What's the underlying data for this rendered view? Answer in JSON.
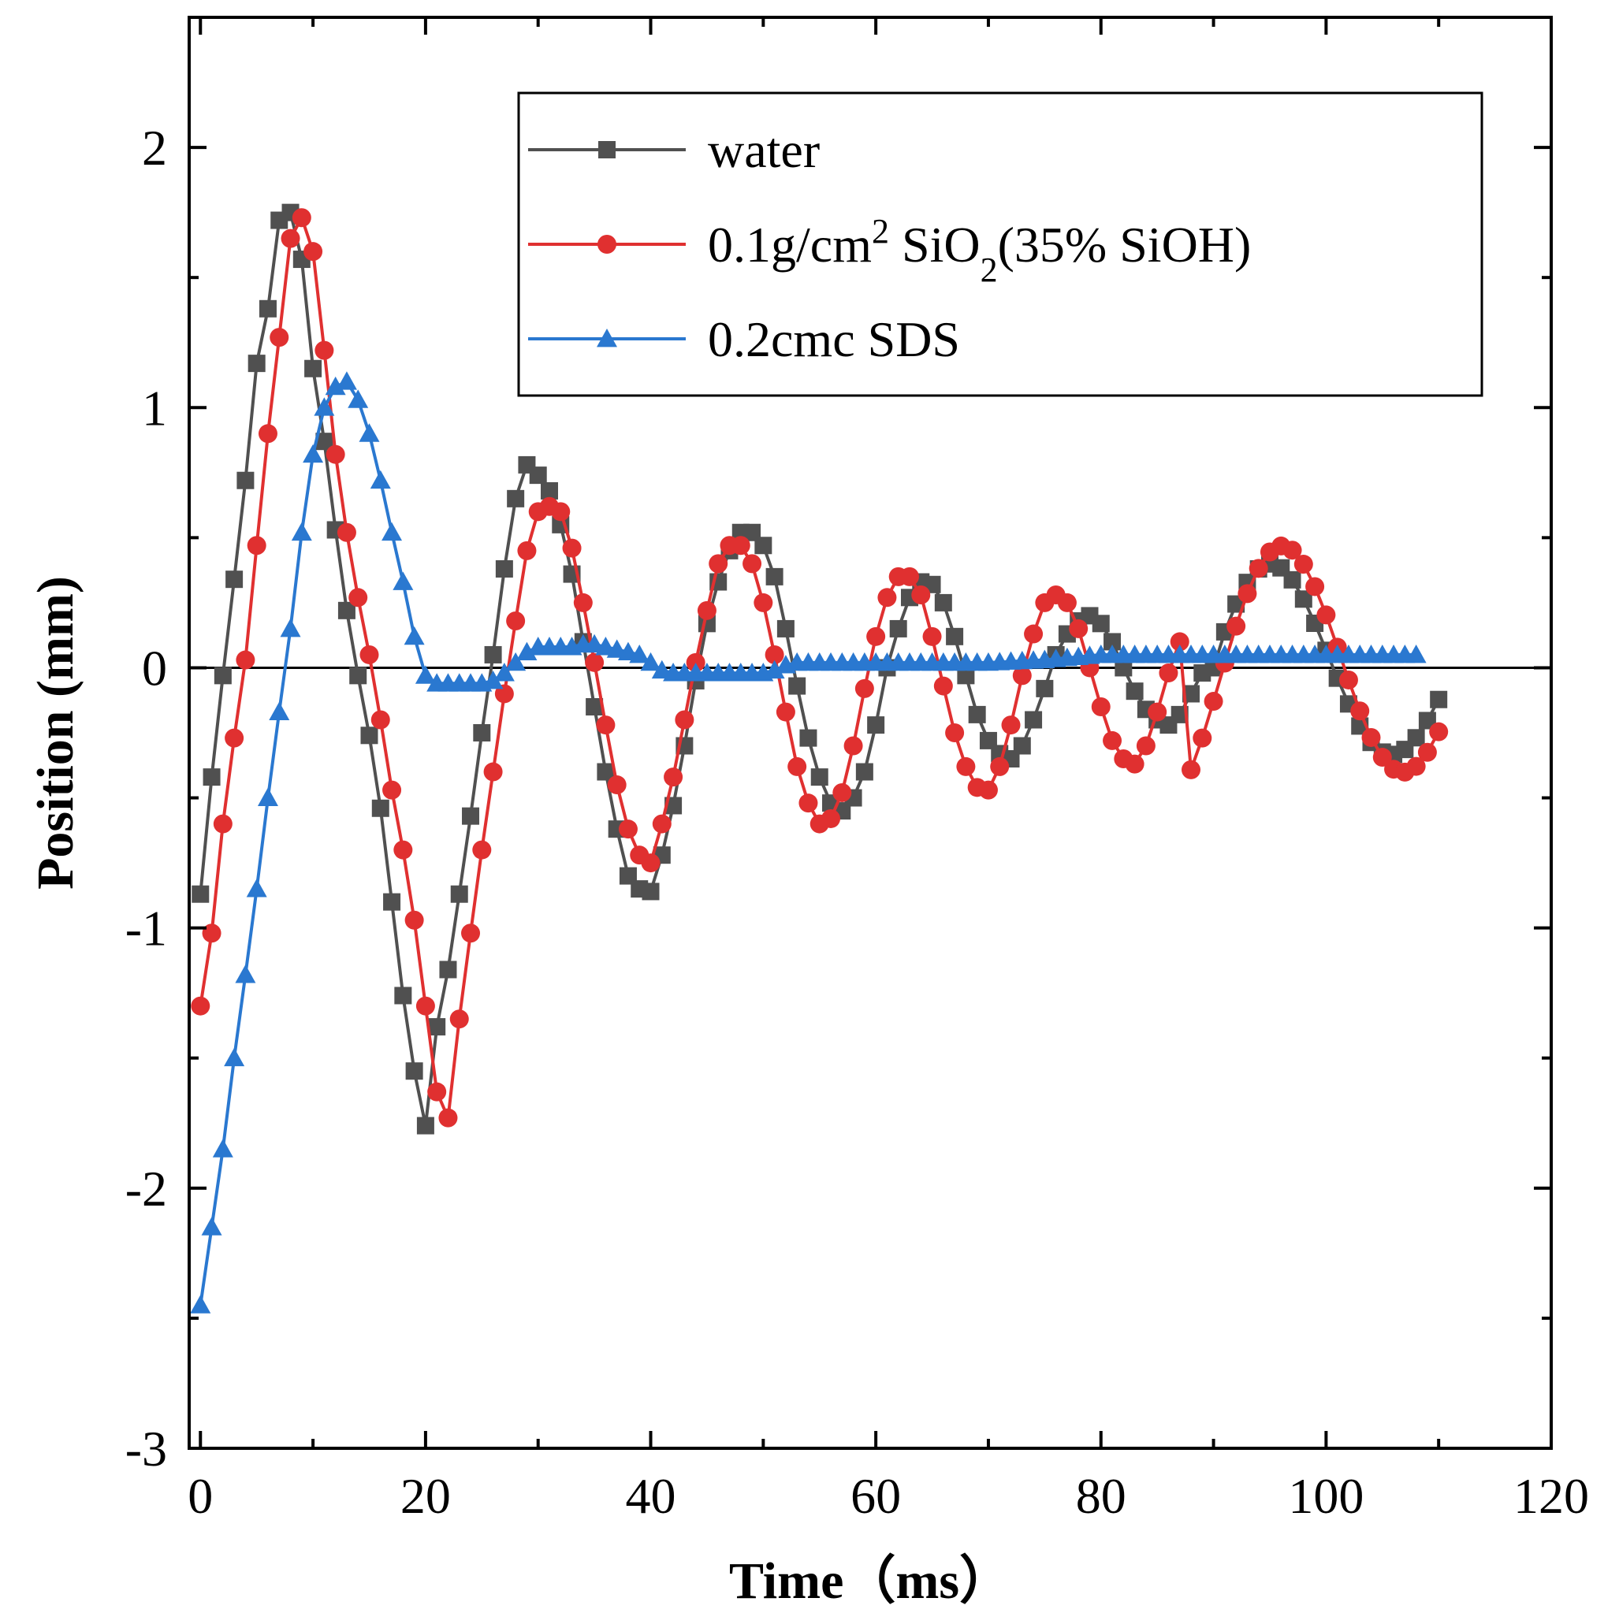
{
  "chart_data": {
    "type": "line",
    "title": "",
    "xlabel": "Time（ms）",
    "ylabel": "Position (mm)",
    "xlim": [
      -1,
      120
    ],
    "ylim": [
      -3,
      2.5
    ],
    "xticks": [
      0,
      20,
      40,
      60,
      80,
      100,
      120
    ],
    "yticks": [
      -3,
      -2,
      -1,
      0,
      1,
      2
    ],
    "xtick_labels": [
      "0",
      "20",
      "40",
      "60",
      "80",
      "100",
      "120"
    ],
    "ytick_labels": [
      "-3",
      "-2",
      "-1",
      "0",
      "1",
      "2"
    ],
    "zero_line": true,
    "legend": {
      "position": "top-right",
      "entries": [
        {
          "label": "water",
          "sub": "",
          "sup": "",
          "tail": ""
        },
        {
          "label": "0.1g/cm",
          "sup": "2",
          "mid": " SiO",
          "sub": "2",
          "tail": "(35% SiOH)"
        },
        {
          "label": "0.2cmc SDS",
          "sub": "",
          "sup": "",
          "tail": ""
        }
      ]
    },
    "series": [
      {
        "name": "water",
        "color": "#505050",
        "marker": "square",
        "model": {
          "start": 0,
          "end": 110,
          "step": 1,
          "amp0": 1.95,
          "tau": 60,
          "period": 21.5,
          "phase": -1.5,
          "offset": 0.0
        },
        "keypoints": [
          [
            0,
            -0.87
          ],
          [
            1,
            -0.42
          ],
          [
            2,
            -0.03
          ],
          [
            3,
            0.34
          ],
          [
            4,
            0.72
          ],
          [
            5,
            1.17
          ],
          [
            6,
            1.38
          ],
          [
            7,
            1.72
          ],
          [
            8,
            1.75
          ],
          [
            9,
            1.57
          ],
          [
            10,
            1.15
          ],
          [
            11,
            0.87
          ],
          [
            12,
            0.53
          ],
          [
            13,
            0.22
          ],
          [
            14,
            -0.03
          ],
          [
            15,
            -0.26
          ],
          [
            16,
            -0.54
          ],
          [
            17,
            -0.9
          ],
          [
            18,
            -1.26
          ],
          [
            19,
            -1.55
          ],
          [
            20,
            -1.76
          ],
          [
            21,
            -1.38
          ],
          [
            22,
            -1.16
          ],
          [
            23,
            -0.87
          ],
          [
            24,
            -0.57
          ],
          [
            25,
            -0.25
          ],
          [
            26,
            0.05
          ],
          [
            27,
            0.38
          ],
          [
            28,
            0.65
          ],
          [
            29,
            0.78
          ],
          [
            30,
            0.74
          ],
          [
            31,
            0.68
          ],
          [
            32,
            0.55
          ],
          [
            33,
            0.36
          ],
          [
            34,
            0.1
          ],
          [
            35,
            -0.15
          ],
          [
            36,
            -0.4
          ],
          [
            37,
            -0.62
          ],
          [
            38,
            -0.8
          ],
          [
            39,
            -0.85
          ],
          [
            40,
            -0.86
          ],
          [
            41,
            -0.72
          ],
          [
            42,
            -0.53
          ],
          [
            43,
            -0.3
          ],
          [
            44,
            -0.05
          ],
          [
            45,
            0.17
          ],
          [
            46,
            0.33
          ],
          [
            47,
            0.45
          ],
          [
            48,
            0.52
          ],
          [
            49,
            0.52
          ],
          [
            50,
            0.47
          ],
          [
            51,
            0.35
          ],
          [
            52,
            0.15
          ],
          [
            53,
            -0.07
          ],
          [
            54,
            -0.27
          ],
          [
            55,
            -0.42
          ],
          [
            56,
            -0.52
          ],
          [
            57,
            -0.55
          ],
          [
            58,
            -0.5
          ],
          [
            59,
            -0.4
          ],
          [
            60,
            -0.22
          ],
          [
            61,
            0.0
          ],
          [
            62,
            0.15
          ],
          [
            63,
            0.27
          ],
          [
            64,
            0.33
          ],
          [
            65,
            0.32
          ],
          [
            66,
            0.25
          ],
          [
            67,
            0.12
          ],
          [
            68,
            -0.03
          ],
          [
            69,
            -0.18
          ],
          [
            70,
            -0.28
          ],
          [
            71,
            -0.33
          ],
          [
            72,
            -0.35
          ],
          [
            73,
            -0.3
          ],
          [
            74,
            -0.2
          ],
          [
            75,
            -0.08
          ],
          [
            76,
            0.05
          ],
          [
            77,
            0.13
          ],
          [
            78,
            0.18
          ],
          [
            79,
            0.2
          ],
          [
            80,
            0.17
          ],
          [
            81,
            0.1
          ],
          [
            82,
            0.0
          ],
          [
            83,
            -0.09
          ],
          [
            84,
            -0.16
          ],
          [
            85,
            -0.2
          ],
          [
            86,
            -0.22
          ],
          [
            87,
            -0.18
          ],
          [
            88,
            -0.1
          ],
          [
            89,
            -0.02
          ],
          [
            90,
            0.0
          ]
        ]
      },
      {
        "name": "0.1g/cm2 SiO2(35% SiOH)",
        "color": "#e03030",
        "marker": "circle",
        "model": {
          "start": 0,
          "end": 110,
          "step": 1,
          "amp0": 1.85,
          "tau": 70,
          "period": 21.5,
          "phase": -0.5,
          "offset": 0.0
        },
        "keypoints": [
          [
            0,
            -1.3
          ],
          [
            1,
            -1.02
          ],
          [
            2,
            -0.6
          ],
          [
            3,
            -0.27
          ],
          [
            4,
            0.03
          ],
          [
            5,
            0.47
          ],
          [
            6,
            0.9
          ],
          [
            7,
            1.27
          ],
          [
            8,
            1.65
          ],
          [
            9,
            1.73
          ],
          [
            10,
            1.6
          ],
          [
            11,
            1.22
          ],
          [
            12,
            0.82
          ],
          [
            13,
            0.52
          ],
          [
            14,
            0.27
          ],
          [
            15,
            0.05
          ],
          [
            16,
            -0.2
          ],
          [
            17,
            -0.47
          ],
          [
            18,
            -0.7
          ],
          [
            19,
            -0.97
          ],
          [
            20,
            -1.3
          ],
          [
            21,
            -1.63
          ],
          [
            22,
            -1.73
          ],
          [
            23,
            -1.35
          ],
          [
            24,
            -1.02
          ],
          [
            25,
            -0.7
          ],
          [
            26,
            -0.4
          ],
          [
            27,
            -0.1
          ],
          [
            28,
            0.18
          ],
          [
            29,
            0.45
          ],
          [
            30,
            0.6
          ],
          [
            31,
            0.62
          ],
          [
            32,
            0.6
          ],
          [
            33,
            0.46
          ],
          [
            34,
            0.25
          ],
          [
            35,
            0.02
          ],
          [
            36,
            -0.22
          ],
          [
            37,
            -0.45
          ],
          [
            38,
            -0.62
          ],
          [
            39,
            -0.72
          ],
          [
            40,
            -0.75
          ],
          [
            41,
            -0.6
          ],
          [
            42,
            -0.42
          ],
          [
            43,
            -0.2
          ],
          [
            44,
            0.02
          ],
          [
            45,
            0.22
          ],
          [
            46,
            0.4
          ],
          [
            47,
            0.47
          ],
          [
            48,
            0.47
          ],
          [
            49,
            0.4
          ],
          [
            50,
            0.25
          ],
          [
            51,
            0.05
          ],
          [
            52,
            -0.17
          ],
          [
            53,
            -0.38
          ],
          [
            54,
            -0.52
          ],
          [
            55,
            -0.6
          ],
          [
            56,
            -0.58
          ],
          [
            57,
            -0.48
          ],
          [
            58,
            -0.3
          ],
          [
            59,
            -0.08
          ],
          [
            60,
            0.12
          ],
          [
            61,
            0.27
          ],
          [
            62,
            0.35
          ],
          [
            63,
            0.35
          ],
          [
            64,
            0.28
          ],
          [
            65,
            0.12
          ],
          [
            66,
            -0.07
          ],
          [
            67,
            -0.25
          ],
          [
            68,
            -0.38
          ],
          [
            69,
            -0.46
          ],
          [
            70,
            -0.47
          ],
          [
            71,
            -0.38
          ],
          [
            72,
            -0.22
          ],
          [
            73,
            -0.03
          ],
          [
            74,
            0.13
          ],
          [
            75,
            0.25
          ],
          [
            76,
            0.28
          ],
          [
            77,
            0.25
          ],
          [
            78,
            0.15
          ],
          [
            79,
            0.0
          ],
          [
            80,
            -0.15
          ],
          [
            81,
            -0.28
          ],
          [
            82,
            -0.35
          ],
          [
            83,
            -0.37
          ],
          [
            84,
            -0.3
          ],
          [
            85,
            -0.17
          ],
          [
            86,
            -0.02
          ],
          [
            87,
            0.1
          ]
        ]
      },
      {
        "name": "0.2cmc SDS",
        "color": "#2a78d0",
        "marker": "triangle",
        "keypoints": [
          [
            0,
            -2.45
          ],
          [
            1,
            -2.15
          ],
          [
            2,
            -1.85
          ],
          [
            3,
            -1.5
          ],
          [
            4,
            -1.18
          ],
          [
            5,
            -0.85
          ],
          [
            6,
            -0.5
          ],
          [
            7,
            -0.17
          ],
          [
            8,
            0.15
          ],
          [
            9,
            0.52
          ],
          [
            10,
            0.82
          ],
          [
            11,
            1.0
          ],
          [
            12,
            1.08
          ],
          [
            13,
            1.1
          ],
          [
            14,
            1.03
          ],
          [
            15,
            0.9
          ],
          [
            16,
            0.72
          ],
          [
            17,
            0.52
          ],
          [
            18,
            0.33
          ],
          [
            19,
            0.12
          ],
          [
            20,
            -0.03
          ],
          [
            21,
            -0.06
          ],
          [
            22,
            -0.06
          ],
          [
            23,
            -0.06
          ],
          [
            24,
            -0.06
          ],
          [
            25,
            -0.06
          ],
          [
            26,
            -0.05
          ],
          [
            27,
            -0.02
          ],
          [
            28,
            0.02
          ],
          [
            29,
            0.06
          ],
          [
            30,
            0.08
          ],
          [
            31,
            0.08
          ],
          [
            32,
            0.08
          ],
          [
            33,
            0.08
          ],
          [
            34,
            0.09
          ],
          [
            35,
            0.09
          ],
          [
            36,
            0.08
          ],
          [
            37,
            0.07
          ],
          [
            38,
            0.06
          ],
          [
            39,
            0.05
          ],
          [
            40,
            0.02
          ],
          [
            41,
            -0.01
          ],
          [
            42,
            -0.02
          ],
          [
            43,
            -0.02
          ],
          [
            44,
            -0.02
          ],
          [
            45,
            -0.02
          ],
          [
            46,
            -0.02
          ],
          [
            47,
            -0.02
          ],
          [
            48,
            -0.02
          ],
          [
            49,
            -0.02
          ],
          [
            50,
            -0.02
          ],
          [
            51,
            -0.01
          ],
          [
            52,
            0.01
          ],
          [
            53,
            0.02
          ],
          [
            54,
            0.02
          ],
          [
            55,
            0.02
          ],
          [
            56,
            0.02
          ],
          [
            57,
            0.02
          ],
          [
            58,
            0.02
          ],
          [
            59,
            0.02
          ],
          [
            60,
            0.02
          ],
          [
            65,
            0.02
          ],
          [
            70,
            0.02
          ],
          [
            75,
            0.03
          ],
          [
            80,
            0.05
          ],
          [
            85,
            0.05
          ],
          [
            90,
            0.05
          ],
          [
            95,
            0.05
          ],
          [
            100,
            0.05
          ],
          [
            108,
            0.05
          ]
        ]
      }
    ]
  }
}
